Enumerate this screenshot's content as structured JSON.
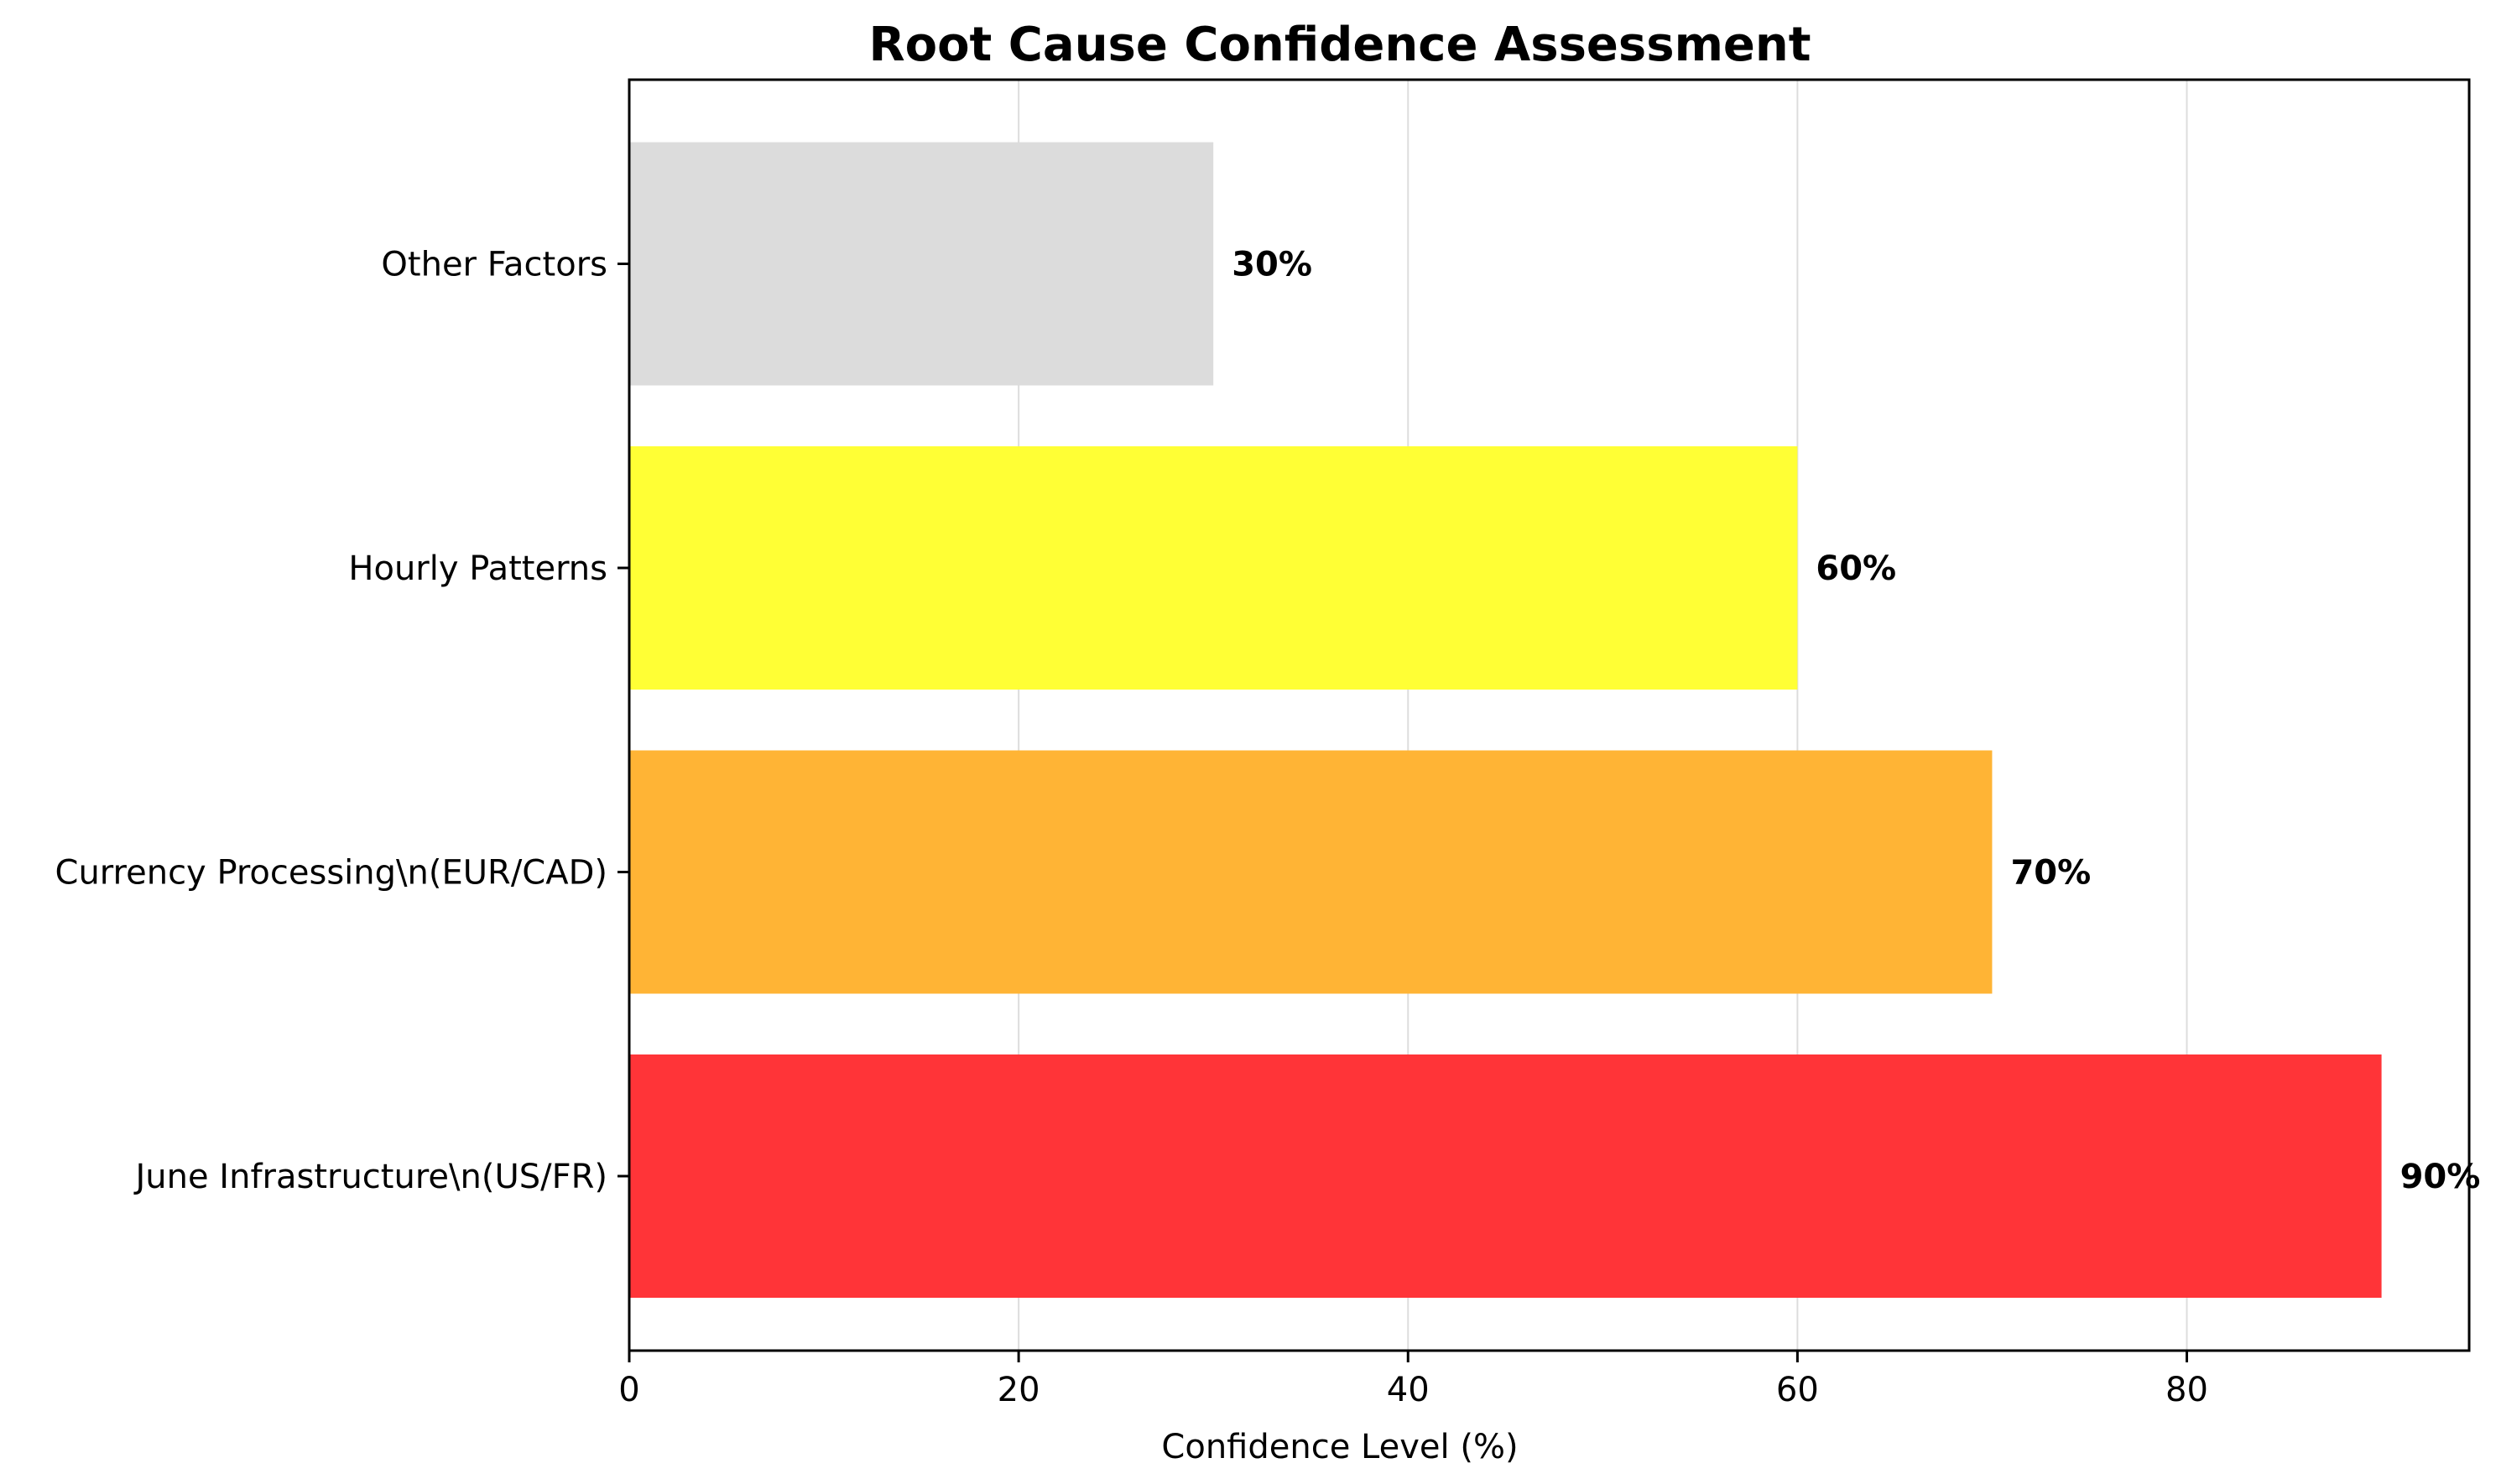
{
  "chart_data": {
    "type": "bar",
    "orientation": "horizontal",
    "title": "Root Cause Confidence Assessment",
    "xlabel": "Confidence Level (%)",
    "ylabel": "",
    "xlim": [
      0,
      94.5
    ],
    "xticks": [
      0,
      20,
      40,
      60,
      80
    ],
    "grid": "x-axis vertical lines",
    "categories": [
      "June Infrastructure\\n(US/FR)",
      "Currency Processing\\n(EUR/CAD)",
      "Hourly Patterns",
      "Other Factors"
    ],
    "values": [
      90,
      70,
      60,
      30
    ],
    "value_labels": [
      "90%",
      "70%",
      "60%",
      "30%"
    ],
    "colors": [
      "#ff3438",
      "#ffb435",
      "#ffff35",
      "#dcdcdc"
    ]
  }
}
